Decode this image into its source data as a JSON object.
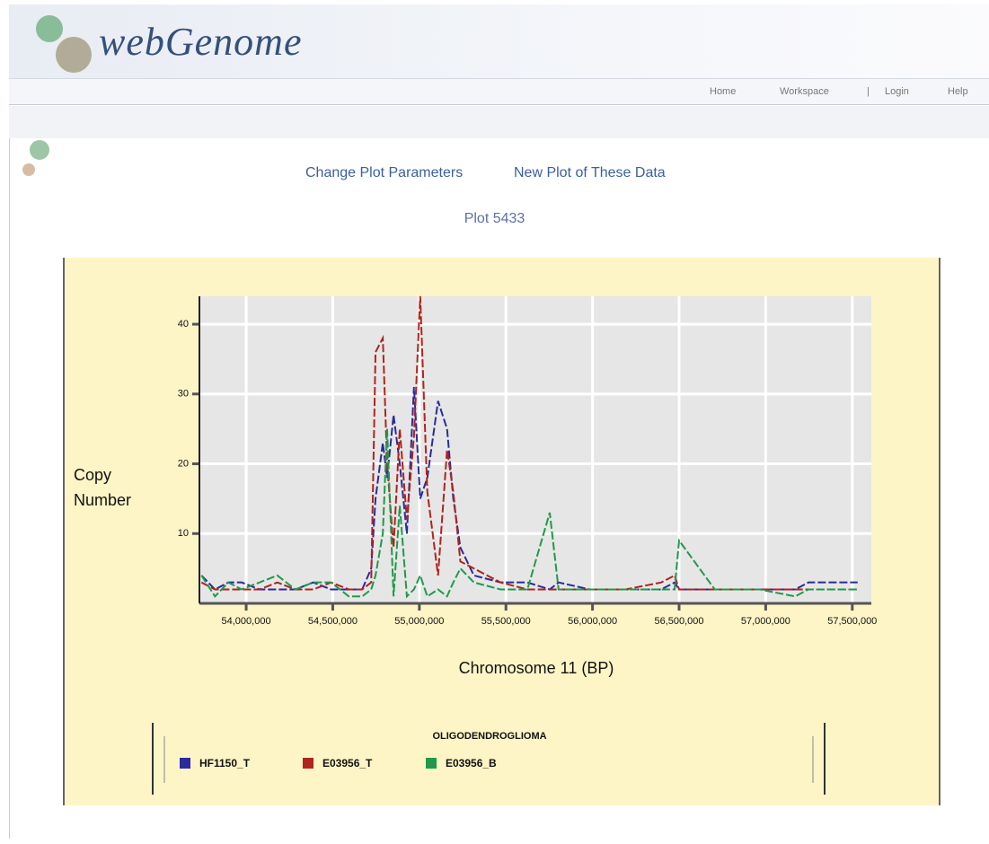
{
  "header": {
    "logo": "webGenome"
  },
  "nav": [
    "Home",
    "Workspace",
    "|",
    "Login",
    "Help"
  ],
  "links": [
    "Change Plot Parameters",
    "New Plot of These Data"
  ],
  "plot_title": "Plot 5433",
  "chart_data": {
    "type": "line",
    "x_label": "Chromosome 11 (BP)",
    "y_label": "Copy Number",
    "legend_title": "OLIGODENDROGLIOMA",
    "x": [
      53742000,
      53820000,
      53897000,
      53974000,
      54077000,
      54180000,
      54284000,
      54387000,
      54490000,
      54593000,
      54670000,
      54722000,
      54747000,
      54789000,
      54814000,
      54851000,
      54887000,
      54928000,
      54969000,
      55005000,
      55046000,
      55108000,
      55160000,
      55196000,
      55237000,
      55315000,
      55469000,
      55624000,
      55753000,
      55804000,
      55985000,
      56191000,
      56397000,
      56474000,
      56500000,
      56706000,
      56964000,
      57170000,
      57247000,
      57531000
    ],
    "series": [
      {
        "name": "HF1150_T",
        "color": "#2b2b9c",
        "values": [
          4,
          2,
          3,
          3,
          2,
          2,
          2,
          3,
          2,
          2,
          2,
          5,
          15,
          23,
          18,
          27,
          20,
          10,
          31,
          15,
          18,
          29,
          25,
          15,
          8,
          4,
          3,
          3,
          2,
          3,
          2,
          2,
          2,
          3,
          2,
          2,
          2,
          2,
          3,
          3
        ]
      },
      {
        "name": "E03956_T",
        "color": "#b0241d",
        "values": [
          3,
          2,
          2,
          2,
          2,
          3,
          2,
          2,
          3,
          2,
          2,
          3,
          36,
          38,
          20,
          8,
          25,
          12,
          24,
          44,
          16,
          4,
          22,
          16,
          6,
          5,
          3,
          2,
          2,
          2,
          2,
          2,
          3,
          4,
          2,
          2,
          2,
          2,
          2,
          2
        ]
      },
      {
        "name": "E03956_B",
        "color": "#1f9a4a",
        "values": [
          4,
          1,
          3,
          2,
          3,
          4,
          2,
          3,
          3,
          1,
          1,
          2,
          4,
          10,
          25,
          1,
          14,
          1,
          2,
          4,
          1,
          2,
          1,
          3,
          5,
          3,
          2,
          2,
          13,
          2,
          2,
          2,
          2,
          2,
          9,
          2,
          2,
          1,
          2,
          2
        ]
      }
    ],
    "xlim": [
      53730000,
      57610000
    ],
    "xticks": [
      {
        "value": 54000000,
        "label": "54,000,000"
      },
      {
        "value": 54500000,
        "label": "54,500,000"
      },
      {
        "value": 55000000,
        "label": "55,000,000"
      },
      {
        "value": 55500000,
        "label": "55,500,000"
      },
      {
        "value": 56000000,
        "label": "56,000,000"
      },
      {
        "value": 56500000,
        "label": "56,500,000"
      },
      {
        "value": 57000000,
        "label": "57,000,000"
      },
      {
        "value": 57500000,
        "label": "57,500,000"
      }
    ],
    "ylim": [
      0,
      44
    ],
    "yticks": [
      10,
      20,
      30,
      40
    ],
    "grid": true
  }
}
